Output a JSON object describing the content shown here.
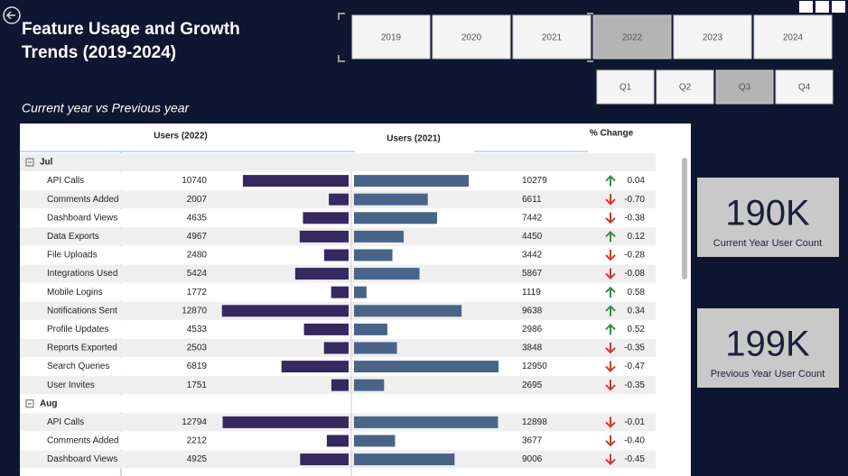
{
  "header": {
    "title": "Feature Usage and Growth Trends (2019-2024)",
    "subtitle": "Current year vs Previous year"
  },
  "years": [
    {
      "label": "2019",
      "selected": false
    },
    {
      "label": "2020",
      "selected": false
    },
    {
      "label": "2021",
      "selected": false
    },
    {
      "label": "2022",
      "selected": true
    },
    {
      "label": "2023",
      "selected": false
    },
    {
      "label": "2024",
      "selected": false
    }
  ],
  "quarters": [
    {
      "label": "Q1",
      "selected": false
    },
    {
      "label": "Q2",
      "selected": false
    },
    {
      "label": "Q3",
      "selected": true
    },
    {
      "label": "Q4",
      "selected": false
    }
  ],
  "table": {
    "headers": {
      "current": "Users (2022)",
      "previous": "Users (2021)",
      "change": "% Change"
    },
    "colors": {
      "current": "#35295f",
      "previous": "#4a6489",
      "up": "#3f8a4c",
      "down": "#cc3d2a"
    },
    "groups": [
      {
        "name": "Jul",
        "rows": [
          {
            "feature": "API Calls",
            "current": 10740,
            "previous": 10279,
            "change": {
              "value": 0.04,
              "label": "0.04"
            }
          },
          {
            "feature": "Comments Added",
            "current": 2007,
            "previous": 6611,
            "change": {
              "value": -0.7,
              "label": "-0.70"
            }
          },
          {
            "feature": "Dashboard Views",
            "current": 4635,
            "previous": 7442,
            "change": {
              "value": -0.38,
              "label": "-0.38"
            }
          },
          {
            "feature": "Data Exports",
            "current": 4967,
            "previous": 4450,
            "change": {
              "value": 0.12,
              "label": "0.12"
            }
          },
          {
            "feature": "File Uploads",
            "current": 2480,
            "previous": 3442,
            "change": {
              "value": -0.28,
              "label": "-0.28"
            }
          },
          {
            "feature": "Integrations Used",
            "current": 5424,
            "previous": 5867,
            "change": {
              "value": -0.08,
              "label": "-0.08"
            }
          },
          {
            "feature": "Mobile Logins",
            "current": 1772,
            "previous": 1119,
            "change": {
              "value": 0.58,
              "label": "0.58"
            }
          },
          {
            "feature": "Notifications Sent",
            "current": 12870,
            "previous": 9638,
            "change": {
              "value": 0.34,
              "label": "0.34"
            }
          },
          {
            "feature": "Profile Updates",
            "current": 4533,
            "previous": 2986,
            "change": {
              "value": 0.52,
              "label": "0.52"
            }
          },
          {
            "feature": "Reports Exported",
            "current": 2503,
            "previous": 3848,
            "change": {
              "value": -0.35,
              "label": "-0.35"
            }
          },
          {
            "feature": "Search Queries",
            "current": 6819,
            "previous": 12950,
            "change": {
              "value": -0.47,
              "label": "-0.47"
            }
          },
          {
            "feature": "User Invites",
            "current": 1751,
            "previous": 2695,
            "change": {
              "value": -0.35,
              "label": "-0.35"
            }
          }
        ]
      },
      {
        "name": "Aug",
        "rows": [
          {
            "feature": "API Calls",
            "current": 12794,
            "previous": 12898,
            "change": {
              "value": -0.01,
              "label": "-0.01"
            }
          },
          {
            "feature": "Comments Added",
            "current": 2212,
            "previous": 3677,
            "change": {
              "value": -0.4,
              "label": "-0.40"
            }
          },
          {
            "feature": "Dashboard Views",
            "current": 4925,
            "previous": 9006,
            "change": {
              "value": -0.45,
              "label": "-0.45"
            }
          }
        ]
      }
    ]
  },
  "cards": [
    {
      "value": "190K",
      "label": "Current Year User Count"
    },
    {
      "value": "199K",
      "label": "Previous Year User Count"
    }
  ]
}
